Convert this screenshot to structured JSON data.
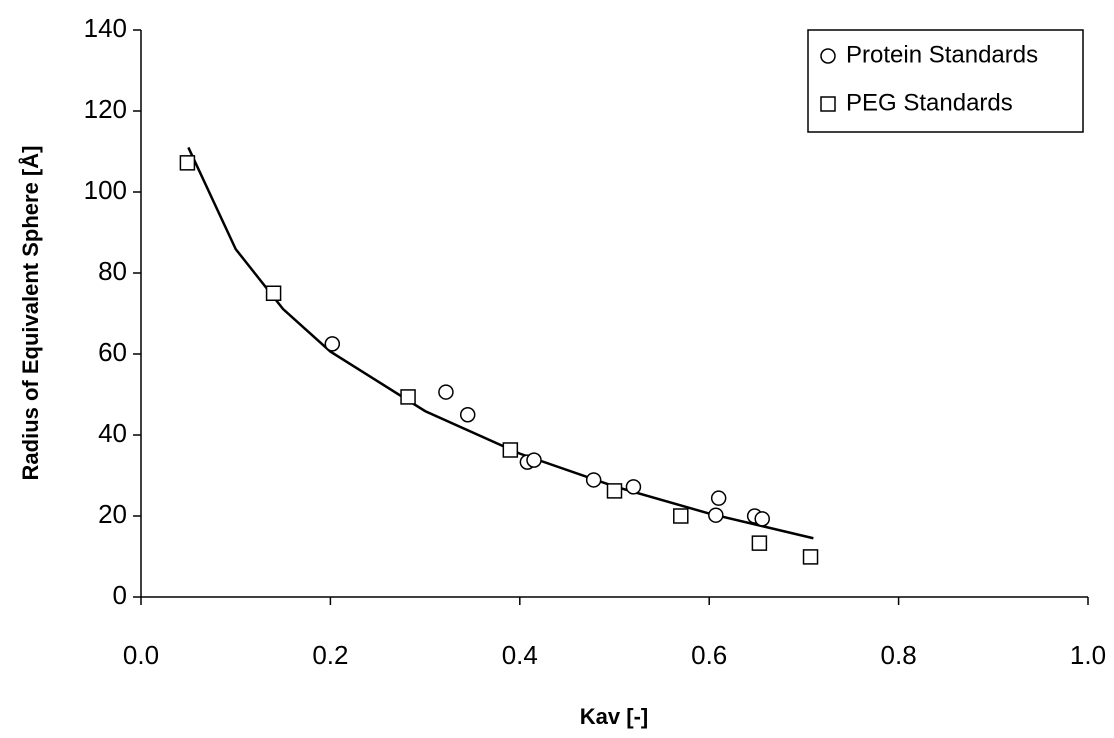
{
  "chart_data": {
    "type": "scatter",
    "x_label": "Kav [-]",
    "y_label": "Radius of Equivalent Sphere [Å]",
    "xlim": [
      0,
      1
    ],
    "ylim": [
      0,
      140
    ],
    "xticks": [
      {
        "value": 0,
        "label": "0.0"
      },
      0.2,
      0.4,
      0.6,
      0.8,
      {
        "value": 1,
        "label": "1.0"
      }
    ],
    "yticks": [
      0,
      20,
      40,
      60,
      80,
      100,
      120,
      140
    ],
    "grid": false,
    "legend": "upper right",
    "series": [
      {
        "name": "Protein Standards",
        "marker": "circle",
        "color": "#000000",
        "x": [
          0.202,
          0.322,
          0.345,
          0.408,
          0.415,
          0.478,
          0.52,
          0.607,
          0.61,
          0.648,
          0.656
        ],
        "values": [
          62.5,
          50.6,
          45,
          33.3,
          33.8,
          28.9,
          27.2,
          20.2,
          24.4,
          20,
          19.3
        ]
      },
      {
        "name": "PEG Standards",
        "marker": "square",
        "color": "#000000",
        "x": [
          0.049,
          0.14,
          0.282,
          0.39,
          0.5,
          0.57,
          0.653,
          0.707
        ],
        "values": [
          107.2,
          75,
          49.4,
          36.3,
          26.2,
          20,
          13.3,
          9.9
        ]
      }
    ],
    "curve": {
      "color": "#000000",
      "x": [
        0.05,
        0.1,
        0.15,
        0.2,
        0.3,
        0.4,
        0.5,
        0.6,
        0.71
      ],
      "values": [
        111,
        85.9,
        71.1,
        60.6,
        45.9,
        35.4,
        27.3,
        20.6,
        14.5
      ]
    }
  }
}
